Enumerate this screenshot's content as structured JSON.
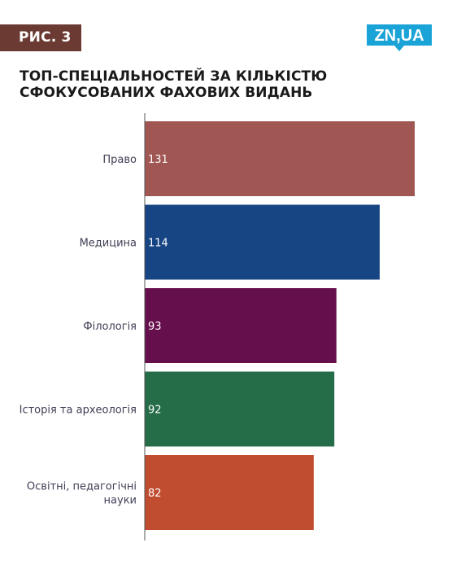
{
  "header": {
    "figure_label": "РИС. 3",
    "logo_text": "ZN,UA",
    "title_line1": "ТОП-СПЕЦІАЛЬНОСТЕЙ ЗА КІЛЬКІСТЮ",
    "title_line2": "СФОКУСОВАНИХ ФАХОВИХ ВИДАНЬ"
  },
  "colors": {
    "badge": "#6b3a33",
    "logo": "#1aa3d6",
    "axis": "#555555"
  },
  "chart_data": {
    "type": "bar",
    "orientation": "horizontal",
    "title": "ТОП-СПЕЦІАЛЬНОСТЕЙ ЗА КІЛЬКІСТЮ СФОКУСОВАНИХ ФАХОВИХ ВИДАНЬ",
    "categories": [
      [
        "Право"
      ],
      [
        "Медицина"
      ],
      [
        "Філологія"
      ],
      [
        "Історія та археологія"
      ],
      [
        "Освітні, педагогічні",
        "науки"
      ]
    ],
    "values": [
      131,
      114,
      93,
      92,
      82
    ],
    "value_labels": [
      "131",
      "114",
      "93",
      "92",
      "82"
    ],
    "bar_colors": [
      "#a05653",
      "#174583",
      "#660f4d",
      "#256d48",
      "#c04d2f"
    ],
    "xlim": [
      0,
      131
    ],
    "xlabel": "",
    "ylabel": "",
    "grid": false,
    "legend": "none"
  }
}
